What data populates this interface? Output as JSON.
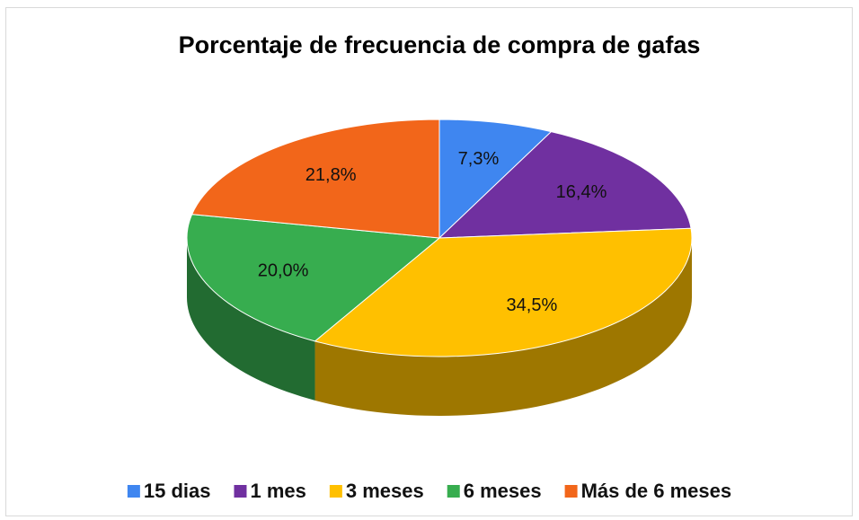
{
  "chart_data": {
    "type": "pie",
    "title": "Porcentaje de frecuencia de compra de gafas",
    "categories": [
      "15 dias",
      "1 mes",
      "3 meses",
      "6 meses",
      "Más de 6 meses"
    ],
    "values": [
      7.3,
      16.4,
      34.5,
      20.0,
      21.8
    ],
    "value_labels": [
      "7,3%",
      "16,4%",
      "34,5%",
      "20,0%",
      "21,8%"
    ],
    "colors": [
      "#3f86f0",
      "#7030a0",
      "#ffc000",
      "#37ad4f",
      "#f2661a"
    ],
    "legend": "bottom"
  }
}
